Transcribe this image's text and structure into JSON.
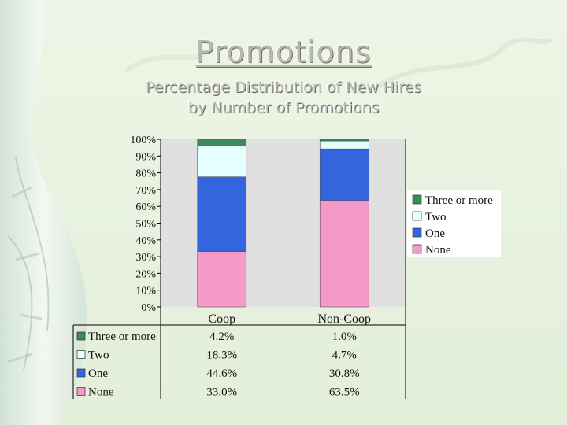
{
  "slide": {
    "title": "Promotions",
    "subtitle_line1": "Percentage Distribution of New Hires",
    "subtitle_line2": "by Number of Promotions"
  },
  "colors": {
    "three_or_more": "#3a8a5a",
    "two": "#e6ffff",
    "one": "#3366dd",
    "none": "#f59ac8",
    "plot_bg": "#e0e0e0"
  },
  "chart_data": {
    "type": "bar",
    "stacked": true,
    "categories": [
      "Coop",
      "Non-Coop"
    ],
    "series": [
      {
        "name": "None",
        "values": [
          33.0,
          63.5
        ],
        "labels": [
          "33.0%",
          "63.5%"
        ]
      },
      {
        "name": "One",
        "values": [
          44.6,
          30.8
        ],
        "labels": [
          "44.6%",
          "30.8%"
        ]
      },
      {
        "name": "Two",
        "values": [
          18.3,
          4.7
        ],
        "labels": [
          "18.3%",
          "4.7%"
        ]
      },
      {
        "name": "Three or more",
        "values": [
          4.2,
          1.0
        ],
        "labels": [
          "4.2%",
          "1.0%"
        ]
      }
    ],
    "ylim": [
      0,
      100
    ],
    "yticks": [
      "0%",
      "10%",
      "20%",
      "30%",
      "40%",
      "50%",
      "60%",
      "70%",
      "80%",
      "90%",
      "100%"
    ],
    "legend": [
      "Three or more",
      "Two",
      "One",
      "None"
    ],
    "legend_position": "right",
    "data_table": true,
    "grid": false
  }
}
